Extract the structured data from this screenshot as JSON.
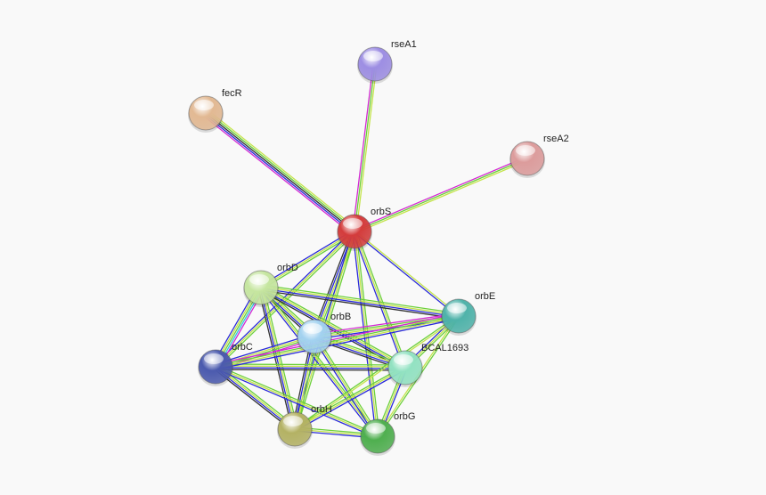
{
  "nodes": [
    {
      "label": "rseA1"
    },
    {
      "label": "fecR"
    },
    {
      "label": "rseA2"
    },
    {
      "label": "orbS"
    },
    {
      "label": "orbD"
    },
    {
      "label": "orbE"
    },
    {
      "label": "orbB"
    },
    {
      "label": "orbC"
    },
    {
      "label": "BCAL1693"
    },
    {
      "label": "orbH"
    },
    {
      "label": "orbG"
    }
  ]
}
